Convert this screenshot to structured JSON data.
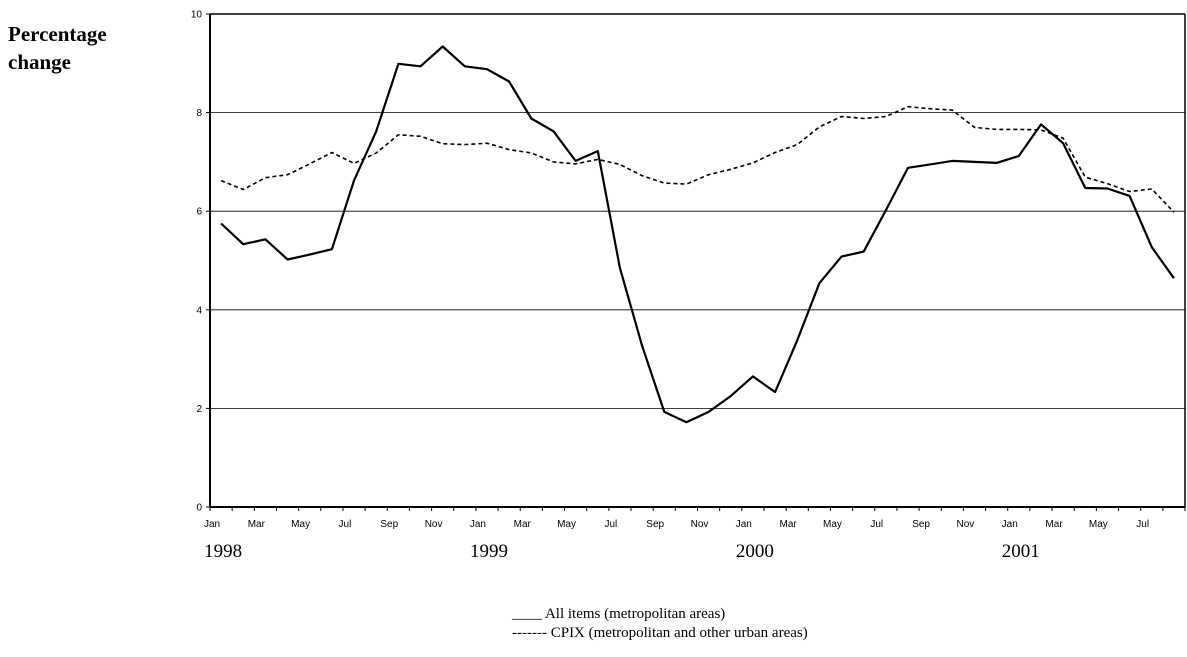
{
  "ylabel_lines": [
    "Percentage",
    "change"
  ],
  "legend": [
    {
      "marker": "____",
      "text": "All items (metropolitan  areas)"
    },
    {
      "marker": "-------",
      "text": "CPIX  (metropolitan and other urban areas)"
    }
  ],
  "chart_data": {
    "type": "line",
    "ylim": [
      0,
      10
    ],
    "yticks": [
      "0",
      "2",
      "4",
      "6",
      "8",
      "10"
    ],
    "x_tick_labels": [
      "Jan",
      "Mar",
      "May",
      "Jul",
      "Sep",
      "Nov",
      "Jan",
      "Mar",
      "May",
      "Jul",
      "Sep",
      "Nov",
      "Jan",
      "Mar",
      "May",
      "Jul",
      "Sep",
      "Nov",
      "Jan",
      "Mar",
      "May",
      "Jul"
    ],
    "x_tick_dates": [
      "1998-01",
      "1998-03",
      "1998-05",
      "1998-07",
      "1998-09",
      "1998-11",
      "1999-01",
      "1999-03",
      "1999-05",
      "1999-07",
      "1999-09",
      "1999-11",
      "2000-01",
      "2000-03",
      "2000-05",
      "2000-07",
      "2000-09",
      "2000-11",
      "2001-01",
      "2001-03",
      "2001-05",
      "2001-07"
    ],
    "years": [
      {
        "label": "1998",
        "month": "1998-01"
      },
      {
        "label": "1999",
        "month": "1999-01"
      },
      {
        "label": "2000",
        "month": "2000-01"
      },
      {
        "label": "2001",
        "month": "2001-01"
      }
    ],
    "grid": true,
    "x": [
      "1998-01",
      "1998-02",
      "1998-03",
      "1998-04",
      "1998-05",
      "1998-06",
      "1998-07",
      "1998-08",
      "1998-09",
      "1998-10",
      "1998-11",
      "1998-12",
      "1999-01",
      "1999-02",
      "1999-03",
      "1999-04",
      "1999-05",
      "1999-06",
      "1999-07",
      "1999-08",
      "1999-09",
      "1999-10",
      "1999-11",
      "1999-12",
      "2000-01",
      "2000-02",
      "2000-03",
      "2000-04",
      "2000-05",
      "2000-06",
      "2000-07",
      "2000-08",
      "2000-09",
      "2000-10",
      "2000-11",
      "2000-12",
      "2001-01",
      "2001-02",
      "2001-03",
      "2001-04",
      "2001-05",
      "2001-06",
      "2001-07",
      "2001-08"
    ],
    "series": [
      {
        "name": "All items (metropolitan  areas)",
        "style": "solid",
        "color": "#000000",
        "values": [
          5.75,
          5.33,
          5.43,
          5.02,
          5.12,
          5.23,
          6.62,
          7.62,
          8.99,
          8.94,
          9.34,
          8.94,
          8.88,
          8.63,
          7.88,
          7.62,
          7.02,
          7.22,
          4.85,
          3.27,
          1.93,
          1.72,
          1.93,
          2.25,
          2.65,
          2.33,
          3.38,
          4.54,
          5.08,
          5.18,
          6.02,
          6.88,
          6.95,
          7.02,
          7.0,
          6.98,
          7.12,
          7.76,
          7.38,
          6.47,
          6.46,
          6.31,
          5.27,
          4.64
        ]
      },
      {
        "name": "CPIX  (metropolitan and other urban areas)",
        "style": "dashed",
        "color": "#000000",
        "values": [
          6.62,
          6.44,
          6.68,
          6.74,
          6.96,
          7.19,
          6.97,
          7.18,
          7.55,
          7.52,
          7.37,
          7.35,
          7.38,
          7.25,
          7.18,
          7.0,
          6.96,
          7.05,
          6.95,
          6.72,
          6.57,
          6.55,
          6.74,
          6.85,
          6.98,
          7.19,
          7.35,
          7.71,
          7.92,
          7.88,
          7.92,
          8.12,
          8.08,
          8.05,
          7.7,
          7.66,
          7.66,
          7.65,
          7.48,
          6.69,
          6.56,
          6.4,
          6.45,
          5.98
        ]
      }
    ]
  }
}
